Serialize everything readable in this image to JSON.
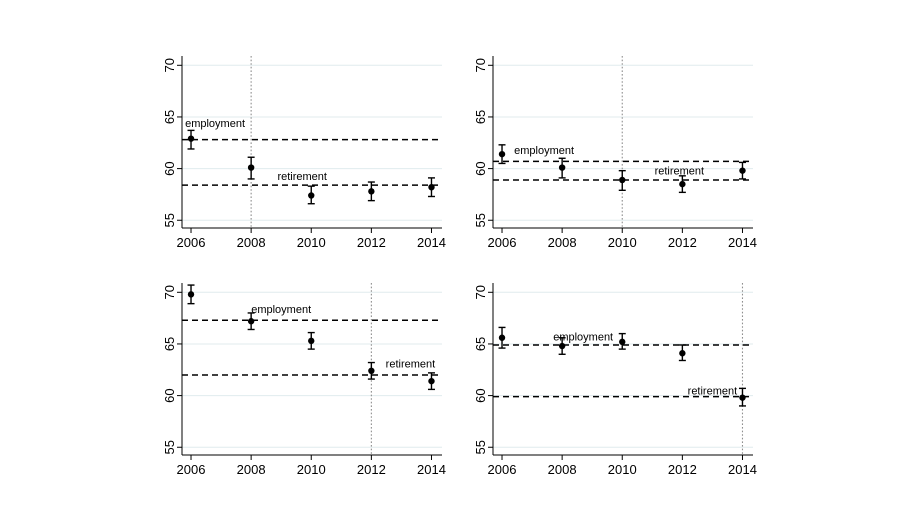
{
  "figure": {
    "background_color": "#eaf1f3",
    "plot_background": "#ffffff",
    "grid_color": "#e0ebee",
    "axis_color": "#000000",
    "marker_color": "#000000",
    "dash_line_color": "#000000",
    "vline_color": "#8f8f8f",
    "text_color": "#000000"
  },
  "chart_data": [
    {
      "type": "scatter",
      "panel": "top-left",
      "title": "",
      "xlabel": "",
      "ylabel": "",
      "x": [
        2006,
        2008,
        2010,
        2012,
        2014
      ],
      "series": [
        {
          "name": "point-estimate",
          "values": [
            62.9,
            60.1,
            57.4,
            57.8,
            58.2
          ],
          "ci_low": [
            61.9,
            59.0,
            56.6,
            56.9,
            57.3
          ],
          "ci_high": [
            63.7,
            61.1,
            58.3,
            58.7,
            59.1
          ]
        }
      ],
      "hlines": [
        {
          "label": "employment",
          "y": 62.8,
          "label_x": 2006.8,
          "label_y": 64.4
        },
        {
          "label": "retirement",
          "y": 58.4,
          "label_x": 2009.7,
          "label_y": 59.3
        }
      ],
      "vline_x": 2008,
      "xticks": [
        2006,
        2008,
        2010,
        2012,
        2014
      ],
      "yticks": [
        55,
        60,
        65,
        70
      ],
      "xlim": [
        2005.7,
        2014.35
      ],
      "ylim": [
        54.25,
        70.9
      ],
      "grid": "horizontal",
      "legend": "none"
    },
    {
      "type": "scatter",
      "panel": "top-right",
      "title": "",
      "xlabel": "",
      "ylabel": "",
      "x": [
        2006,
        2008,
        2010,
        2012,
        2014
      ],
      "series": [
        {
          "name": "point-estimate",
          "values": [
            61.4,
            60.1,
            58.9,
            58.5,
            59.8
          ],
          "ci_low": [
            60.5,
            59.1,
            57.9,
            57.7,
            59.0
          ],
          "ci_high": [
            62.3,
            61.0,
            59.8,
            59.3,
            60.6
          ]
        }
      ],
      "hlines": [
        {
          "label": "employment",
          "y": 60.7,
          "label_x": 2007.4,
          "label_y": 61.8
        },
        {
          "label": "retirement",
          "y": 58.9,
          "label_x": 2011.9,
          "label_y": 59.8
        }
      ],
      "vline_x": 2010,
      "xticks": [
        2006,
        2008,
        2010,
        2012,
        2014
      ],
      "yticks": [
        55,
        60,
        65,
        70
      ],
      "xlim": [
        2005.7,
        2014.35
      ],
      "ylim": [
        54.25,
        70.9
      ],
      "grid": "horizontal",
      "legend": "none"
    },
    {
      "type": "scatter",
      "panel": "bottom-left",
      "title": "",
      "xlabel": "",
      "ylabel": "",
      "x": [
        2006,
        2008,
        2010,
        2012,
        2014
      ],
      "series": [
        {
          "name": "point-estimate",
          "values": [
            69.8,
            67.2,
            65.3,
            62.4,
            61.4
          ],
          "ci_low": [
            68.9,
            66.4,
            64.5,
            61.6,
            60.6
          ],
          "ci_high": [
            70.7,
            68.0,
            66.1,
            63.2,
            62.2
          ]
        }
      ],
      "hlines": [
        {
          "label": "employment",
          "y": 67.3,
          "label_x": 2009.0,
          "label_y": 68.4
        },
        {
          "label": "retirement",
          "y": 62.0,
          "label_x": 2013.3,
          "label_y": 63.1
        }
      ],
      "vline_x": 2012,
      "xticks": [
        2006,
        2008,
        2010,
        2012,
        2014
      ],
      "yticks": [
        55,
        60,
        65,
        70
      ],
      "xlim": [
        2005.7,
        2014.35
      ],
      "ylim": [
        54.25,
        70.9
      ],
      "grid": "horizontal",
      "legend": "none"
    },
    {
      "type": "scatter",
      "panel": "bottom-right",
      "title": "",
      "xlabel": "",
      "ylabel": "",
      "x": [
        2006,
        2008,
        2010,
        2012,
        2014
      ],
      "series": [
        {
          "name": "point-estimate",
          "values": [
            65.6,
            64.8,
            65.2,
            64.1,
            59.8
          ],
          "ci_low": [
            64.6,
            64.0,
            64.5,
            63.4,
            59.0
          ],
          "ci_high": [
            66.6,
            65.6,
            66.0,
            64.9,
            60.7
          ]
        }
      ],
      "hlines": [
        {
          "label": "employment",
          "y": 64.9,
          "label_x": 2008.7,
          "label_y": 65.7
        },
        {
          "label": "retirement",
          "y": 59.9,
          "label_x": 2013.0,
          "label_y": 60.5
        }
      ],
      "vline_x": 2014,
      "xticks": [
        2006,
        2008,
        2010,
        2012,
        2014
      ],
      "yticks": [
        55,
        60,
        65,
        70
      ],
      "xlim": [
        2005.7,
        2014.35
      ],
      "ylim": [
        54.25,
        70.9
      ],
      "grid": "horizontal",
      "legend": "none"
    }
  ]
}
